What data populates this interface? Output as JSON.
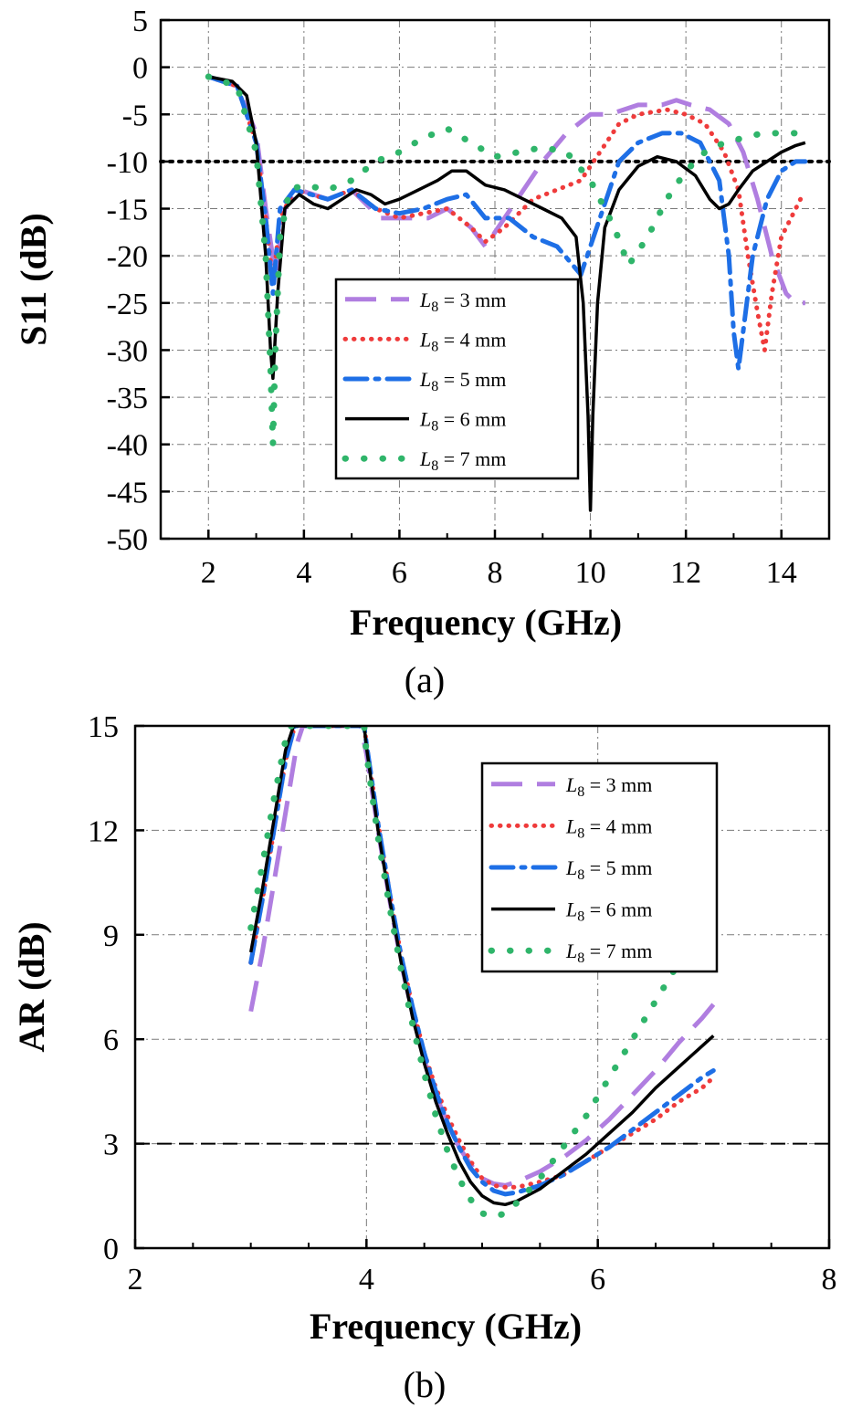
{
  "chart_data": [
    {
      "type": "line",
      "caption": "(a)",
      "xlabel": "Frequency (GHz)",
      "ylabel": "S11 (dB)",
      "xlim": [
        1,
        15
      ],
      "ylim": [
        -50,
        5
      ],
      "xticks": [
        "2",
        "4",
        "6",
        "8",
        "10",
        "12",
        "14"
      ],
      "yticks": [
        "5",
        "0",
        "-5",
        "-10",
        "-15",
        "-20",
        "-25",
        "-30",
        "-35",
        "-40",
        "-45",
        "-50"
      ],
      "grid": true,
      "legend_position": "center-right",
      "reference_line": -10,
      "series": [
        {
          "name": "L8 = 3 mm",
          "sub_label": "8",
          "legend_prefix": "L",
          "legend_suffix": " = 3 mm",
          "color": "#b07ee0",
          "style": "dash",
          "x": [
            2,
            2.6,
            3,
            3.2,
            3.4,
            3.6,
            3.9,
            4.5,
            5,
            5.6,
            6,
            6.6,
            7,
            7.5,
            7.8,
            8.2,
            8.6,
            9,
            9.5,
            10,
            10.4,
            11,
            11.5,
            11.8,
            12.1,
            12.5,
            12.9,
            13.2,
            13.5,
            13.8,
            14.1,
            14.3,
            14.5
          ],
          "y": [
            -1,
            -2,
            -7,
            -15,
            -22,
            -15,
            -13,
            -14,
            -13,
            -16,
            -16,
            -16,
            -15,
            -17,
            -19,
            -16,
            -13,
            -10,
            -7,
            -5,
            -5,
            -4,
            -4,
            -3.5,
            -4,
            -4.5,
            -6,
            -9,
            -14,
            -20,
            -24,
            -25,
            -25
          ]
        },
        {
          "name": "L8 = 4 mm",
          "sub_label": "8",
          "legend_prefix": "L",
          "legend_suffix": " = 4 mm",
          "color": "#ef3b3b",
          "style": "dot",
          "x": [
            2,
            2.6,
            3,
            3.2,
            3.35,
            3.5,
            3.8,
            4.5,
            5,
            5.5,
            6,
            6.5,
            7,
            7.5,
            7.8,
            8.2,
            8.8,
            9.3,
            9.8,
            10.2,
            10.6,
            11,
            11.6,
            12,
            12.4,
            12.8,
            13.1,
            13.3,
            13.5,
            13.65,
            13.8,
            14,
            14.2,
            14.4
          ],
          "y": [
            -1,
            -2,
            -8,
            -16,
            -23,
            -16,
            -13,
            -14,
            -13,
            -15,
            -16,
            -15.5,
            -15,
            -17,
            -18.5,
            -17,
            -14,
            -13,
            -12,
            -9,
            -6,
            -5,
            -4.5,
            -5,
            -6,
            -9,
            -13,
            -20,
            -26,
            -30,
            -24,
            -18,
            -16,
            -14
          ]
        },
        {
          "name": "L8 = 5 mm",
          "sub_label": "8",
          "legend_prefix": "L",
          "legend_suffix": " = 5 mm",
          "color": "#1e6fe6",
          "style": "dashdot",
          "x": [
            2,
            2.6,
            3,
            3.2,
            3.35,
            3.5,
            3.8,
            4.5,
            5,
            5.5,
            6,
            6.5,
            7,
            7.4,
            7.8,
            8.3,
            8.8,
            9.3,
            9.8,
            10.2,
            10.6,
            11,
            11.5,
            11.9,
            12.3,
            12.7,
            12.9,
            13,
            13.1,
            13.2,
            13.4,
            13.7,
            14,
            14.3,
            14.5
          ],
          "y": [
            -1,
            -2,
            -8,
            -16,
            -24,
            -15,
            -13,
            -14,
            -13,
            -15,
            -15.5,
            -15,
            -14,
            -13.5,
            -16,
            -16,
            -18,
            -19,
            -22,
            -16,
            -10,
            -8,
            -7,
            -7,
            -8,
            -12,
            -20,
            -28,
            -32,
            -28,
            -20,
            -14,
            -11,
            -10,
            -10
          ]
        },
        {
          "name": "L8 = 6 mm",
          "sub_label": "8",
          "legend_prefix": "L",
          "legend_suffix": " = 6 mm",
          "color": "#000000",
          "style": "solid",
          "x": [
            2,
            2.5,
            2.8,
            3,
            3.2,
            3.3,
            3.35,
            3.45,
            3.6,
            3.9,
            4.2,
            4.5,
            4.8,
            5.1,
            5.4,
            5.7,
            6,
            6.4,
            6.8,
            7.1,
            7.4,
            7.8,
            8.2,
            8.6,
            9,
            9.4,
            9.7,
            9.85,
            9.95,
            10,
            10.05,
            10.15,
            10.3,
            10.6,
            11,
            11.4,
            11.8,
            12.2,
            12.5,
            12.7,
            12.9,
            13.1,
            13.4,
            13.7,
            14,
            14.3,
            14.5
          ],
          "y": [
            -1,
            -1.5,
            -3,
            -8,
            -20,
            -30,
            -33,
            -24,
            -15,
            -13.5,
            -14.5,
            -15,
            -14,
            -13,
            -13.5,
            -14.5,
            -14,
            -13,
            -12,
            -11,
            -11,
            -12.5,
            -13,
            -14,
            -15,
            -16,
            -18,
            -25,
            -37,
            -47,
            -37,
            -25,
            -17,
            -13,
            -10.5,
            -9.5,
            -10,
            -11.5,
            -14,
            -15,
            -14.5,
            -13,
            -11,
            -10,
            -9,
            -8.3,
            -8
          ]
        },
        {
          "name": "L8 = 7 mm",
          "sub_label": "8",
          "legend_prefix": "L",
          "legend_suffix": " = 7 mm",
          "color": "#2fb56a",
          "style": "sparsedot",
          "x": [
            2,
            2.6,
            3,
            3.2,
            3.3,
            3.35,
            3.4,
            3.5,
            3.7,
            4,
            4.5,
            5,
            5.5,
            6,
            6.5,
            7,
            7.5,
            8,
            8.5,
            9,
            9.5,
            10,
            10.5,
            10.8,
            11.2,
            11.6,
            12,
            12.4,
            12.8,
            13.2,
            13.6,
            14,
            14.3
          ],
          "y": [
            -1,
            -2,
            -9,
            -20,
            -32,
            -40,
            -30,
            -18,
            -13,
            -12.5,
            -13,
            -12,
            -10,
            -9,
            -7.5,
            -6.5,
            -8,
            -9.5,
            -9,
            -8.5,
            -9,
            -12,
            -17,
            -21,
            -18,
            -14,
            -11,
            -9,
            -8,
            -7.5,
            -7,
            -7,
            -7
          ]
        }
      ]
    },
    {
      "type": "line",
      "caption": "(b)",
      "xlabel": "Frequency (GHz)",
      "ylabel": "AR (dB)",
      "xlim": [
        2,
        8
      ],
      "ylim": [
        0,
        15
      ],
      "xticks": [
        "2",
        "4",
        "6",
        "8"
      ],
      "yticks": [
        "15",
        "12",
        "9",
        "6",
        "3",
        "0"
      ],
      "grid": true,
      "legend_position": "top-right",
      "reference_line": 3,
      "series": [
        {
          "name": "L8 = 3 mm",
          "sub_label": "8",
          "legend_prefix": "L",
          "legend_suffix": " = 3 mm",
          "color": "#b07ee0",
          "style": "dash",
          "x": [
            3,
            3.1,
            3.2,
            3.3,
            3.4,
            3.45,
            3.95,
            4.0,
            4.1,
            4.2,
            4.3,
            4.4,
            4.5,
            4.6,
            4.7,
            4.8,
            4.9,
            5.0,
            5.1,
            5.2,
            5.3,
            5.5,
            5.7,
            5.9,
            6.1,
            6.3,
            6.5,
            6.7,
            6.9,
            7.0
          ],
          "y": [
            6.8,
            8.5,
            10.5,
            12.5,
            14.5,
            15,
            15,
            14.2,
            12,
            10,
            8.2,
            6.7,
            5.4,
            4.4,
            3.6,
            2.9,
            2.4,
            2.0,
            1.85,
            1.8,
            1.9,
            2.2,
            2.6,
            3.1,
            3.7,
            4.4,
            5.1,
            5.9,
            6.6,
            7.0
          ]
        },
        {
          "name": "L8 = 4 mm",
          "sub_label": "8",
          "legend_prefix": "L",
          "legend_suffix": " = 4 mm",
          "color": "#ef3b3b",
          "style": "dot",
          "x": [
            3,
            3.1,
            3.2,
            3.3,
            3.38,
            3.98,
            4.0,
            4.1,
            4.2,
            4.3,
            4.4,
            4.5,
            4.6,
            4.7,
            4.8,
            4.9,
            5.0,
            5.1,
            5.2,
            5.3,
            5.5,
            5.7,
            5.9,
            6.1,
            6.3,
            6.5,
            6.7,
            6.9,
            7.0
          ],
          "y": [
            8.2,
            10,
            12,
            14,
            15,
            15,
            14.5,
            12.2,
            10.2,
            8.4,
            6.9,
            5.6,
            4.6,
            3.8,
            3.1,
            2.5,
            2.0,
            1.8,
            1.75,
            1.75,
            1.9,
            2.1,
            2.5,
            2.9,
            3.3,
            3.7,
            4.2,
            4.6,
            4.9
          ]
        },
        {
          "name": "L8 = 5 mm",
          "sub_label": "8",
          "legend_prefix": "L",
          "legend_suffix": " = 5 mm",
          "color": "#1e6fe6",
          "style": "dashdot",
          "x": [
            3,
            3.1,
            3.2,
            3.3,
            3.38,
            3.98,
            4.0,
            4.1,
            4.2,
            4.3,
            4.4,
            4.5,
            4.6,
            4.7,
            4.8,
            4.9,
            5.0,
            5.1,
            5.2,
            5.3,
            5.5,
            5.7,
            5.9,
            6.1,
            6.3,
            6.5,
            6.7,
            6.9,
            7.0
          ],
          "y": [
            8.2,
            10,
            12,
            14,
            15,
            15,
            14.5,
            12.2,
            10.2,
            8.4,
            6.9,
            5.6,
            4.5,
            3.6,
            2.9,
            2.3,
            1.9,
            1.65,
            1.55,
            1.6,
            1.8,
            2.1,
            2.5,
            2.9,
            3.4,
            3.9,
            4.4,
            4.9,
            5.1
          ]
        },
        {
          "name": "L8 = 6 mm",
          "sub_label": "8",
          "legend_prefix": "L",
          "legend_suffix": " = 6 mm",
          "color": "#000000",
          "style": "solid",
          "x": [
            3,
            3.1,
            3.2,
            3.3,
            3.37,
            3.98,
            4.0,
            4.1,
            4.2,
            4.3,
            4.4,
            4.5,
            4.6,
            4.7,
            4.8,
            4.9,
            5.0,
            5.1,
            5.2,
            5.3,
            5.5,
            5.7,
            5.9,
            6.1,
            6.3,
            6.5,
            6.7,
            6.9,
            7.0
          ],
          "y": [
            8.5,
            10.3,
            12.3,
            14.3,
            15,
            15,
            14.4,
            12,
            10,
            8.2,
            6.6,
            5.3,
            4.2,
            3.3,
            2.5,
            1.9,
            1.5,
            1.3,
            1.25,
            1.35,
            1.7,
            2.2,
            2.7,
            3.3,
            3.9,
            4.6,
            5.2,
            5.8,
            6.1
          ]
        },
        {
          "name": "L8 = 7 mm",
          "sub_label": "8",
          "legend_prefix": "L",
          "legend_suffix": " = 7 mm",
          "color": "#2fb56a",
          "style": "sparsedot",
          "x": [
            3,
            3.1,
            3.2,
            3.3,
            3.35,
            3.98,
            4.0,
            4.1,
            4.2,
            4.3,
            4.4,
            4.5,
            4.6,
            4.7,
            4.8,
            4.9,
            5.0,
            5.1,
            5.2,
            5.3,
            5.5,
            5.7,
            5.9,
            6.1,
            6.3,
            6.5,
            6.7,
            6.9,
            7.0
          ],
          "y": [
            9.2,
            11,
            12.9,
            14.6,
            15,
            15,
            14.2,
            11.8,
            9.8,
            8.0,
            6.4,
            5.0,
            3.8,
            2.8,
            2.0,
            1.4,
            1.0,
            0.9,
            1.0,
            1.3,
            2.0,
            2.9,
            3.8,
            4.9,
            6.0,
            7.1,
            8.2,
            9.3,
            9.8
          ]
        }
      ]
    }
  ]
}
